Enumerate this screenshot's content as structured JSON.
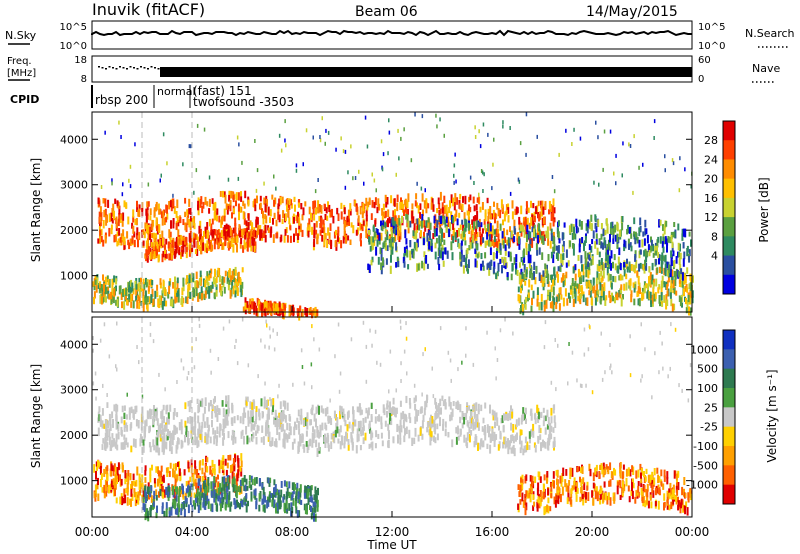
{
  "header": {
    "station": "Inuvik (fitACF)",
    "beam": "Beam 06",
    "date": "14/May/2015"
  },
  "nsky_panel": {
    "left_label": "N.Sky",
    "left_ticks": [
      "10^5",
      "10^0"
    ],
    "right_ticks": [
      "10^5",
      "10^0"
    ],
    "right_label": "N.Search"
  },
  "freq_panel": {
    "left_label_1": "Freq.",
    "left_label_2": "[MHz]",
    "left_ticks": [
      "18",
      "8"
    ],
    "right_ticks": [
      "60",
      "0"
    ],
    "right_label": "Nave"
  },
  "cpid": {
    "label": "CPID",
    "segments": [
      "rbsp 200",
      "normal",
      "(fast) 151",
      "twofsound -3503"
    ]
  },
  "chart_data": [
    {
      "type": "heatmap",
      "name": "power",
      "ylabel": "Slant Range [km]",
      "xlabel": "",
      "y_ticks": [
        "1000",
        "2000",
        "3000",
        "4000"
      ],
      "ylim": [
        200,
        4600
      ],
      "xlim_hours": [
        0,
        24
      ],
      "colorbar_label": "Power [dB]",
      "colorbar_ticks": [
        "28",
        "24",
        "20",
        "16",
        "12",
        "8",
        "4"
      ],
      "colorbar_colors": [
        "#e00000",
        "#ff4000",
        "#ff8c00",
        "#ffc000",
        "#c8d230",
        "#5aa040",
        "#2e8a60",
        "#2a4fa0",
        "#0000e0"
      ],
      "bands": [
        {
          "start_h": 0.2,
          "end_h": 18.5,
          "center_km": 2300,
          "width_km": 600,
          "intensity": "strong"
        },
        {
          "start_h": 2.0,
          "end_h": 6.5,
          "center_km": 1750,
          "width_km": 250,
          "intensity": "strong"
        },
        {
          "start_h": 0.0,
          "end_h": 6.0,
          "center_km": 800,
          "width_km": 350,
          "intensity": "medium"
        },
        {
          "start_h": 6.0,
          "end_h": 9.0,
          "center_km": 300,
          "width_km": 150,
          "intensity": "strong"
        },
        {
          "start_h": 17.0,
          "end_h": 24.0,
          "center_km": 800,
          "width_km": 500,
          "intensity": "medium"
        },
        {
          "start_h": 11.0,
          "end_h": 24.0,
          "center_km": 1700,
          "width_km": 700,
          "intensity": "weak"
        }
      ]
    },
    {
      "type": "heatmap",
      "name": "velocity",
      "ylabel": "Slant Range [km]",
      "xlabel": "Time UT",
      "y_ticks": [
        "1000",
        "2000",
        "3000",
        "4000"
      ],
      "ylim": [
        200,
        4600
      ],
      "x_ticks": [
        "00:00",
        "04:00",
        "08:00",
        "12:00",
        "16:00",
        "20:00",
        "00:00"
      ],
      "xlim_hours": [
        0,
        24
      ],
      "colorbar_label": "Velocity [m s⁻¹]",
      "colorbar_ticks": [
        "1000",
        "500",
        "100",
        "25",
        "-25",
        "-100",
        "-500",
        "-1000"
      ],
      "colorbar_colors": [
        "#1030c0",
        "#3c60b0",
        "#2e7a50",
        "#4aa040",
        "#c8c8c8",
        "#ffd000",
        "#ffa000",
        "#ff6000",
        "#e00000"
      ],
      "bands": [
        {
          "start_h": 0.2,
          "end_h": 18.5,
          "center_km": 2300,
          "width_km": 600,
          "flow": "ground"
        },
        {
          "start_h": 0.0,
          "end_h": 6.0,
          "center_km": 1100,
          "width_km": 500,
          "flow": "away"
        },
        {
          "start_h": 2.0,
          "end_h": 9.0,
          "center_km": 700,
          "width_km": 400,
          "flow": "toward"
        },
        {
          "start_h": 17.0,
          "end_h": 24.0,
          "center_km": 900,
          "width_km": 500,
          "flow": "away"
        }
      ]
    }
  ]
}
